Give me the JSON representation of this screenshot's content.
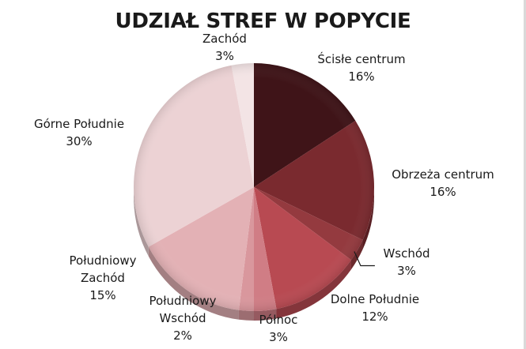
{
  "chart_data": {
    "type": "pie",
    "title": "UDZIAŁ STREF W POPYCIE",
    "slices": [
      {
        "label": "Ścisłe centrum",
        "value": 16,
        "value_label": "16%",
        "color": "#3f1418"
      },
      {
        "label": "Obrzeża centrum",
        "value": 16,
        "value_label": "16%",
        "color": "#7a2a2f"
      },
      {
        "label": "Wschód",
        "value": 3,
        "value_label": "3%",
        "color": "#943a3f"
      },
      {
        "label": "Dolne Południe",
        "value": 12,
        "value_label": "12%",
        "color": "#b84a52"
      },
      {
        "label": "Północ",
        "value": 3,
        "value_label": "3%",
        "color": "#d07d85"
      },
      {
        "label": "Południowy Wschód",
        "value": 2,
        "value_label": "2%",
        "color": "#d9979d"
      },
      {
        "label": "Południowy Zachód",
        "value": 15,
        "value_label": "15%",
        "color": "#e3b1b5"
      },
      {
        "label": "Górne Południe",
        "value": 30,
        "value_label": "30%",
        "color": "#ecd2d4"
      },
      {
        "label": "Zachód",
        "value": 3,
        "value_label": "3%",
        "color": "#f3e4e5"
      }
    ]
  }
}
